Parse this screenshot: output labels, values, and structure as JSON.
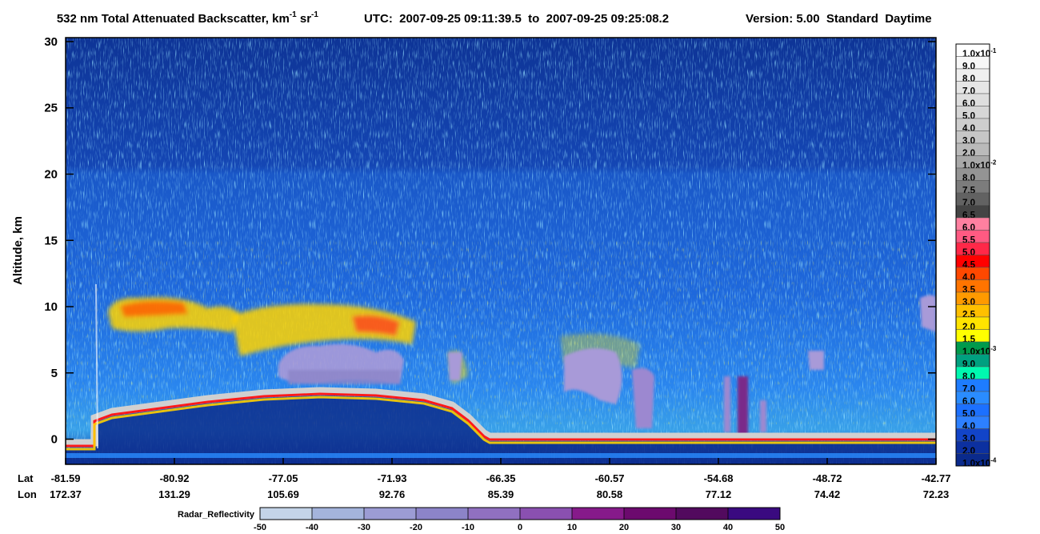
{
  "chart_data": {
    "type": "curtain",
    "title": [
      "532 nm Total Attenuated Backscatter, km",
      "-1",
      " sr",
      "-1"
    ],
    "time_range": "UTC:  2007-09-25 09:11:39.5  to  2007-09-25 09:25:08.2",
    "version": "Version: 5.00  Standard  Daytime",
    "ylabel": "Altitude, km",
    "ylim": [
      -1.9,
      30.3
    ],
    "yticks": [
      0,
      5,
      10,
      15,
      20,
      25,
      30
    ],
    "x_rows": [
      "Lat",
      "Lon"
    ],
    "lat": [
      -81.59,
      -80.92,
      -77.05,
      -71.93,
      -66.35,
      -60.57,
      -54.68,
      -48.72,
      -42.77
    ],
    "lon": [
      172.37,
      131.29,
      105.69,
      92.76,
      85.39,
      80.58,
      77.12,
      74.42,
      72.23
    ],
    "colorbar": [
      {
        "text": "1.0x10",
        "sup": "-1",
        "color": "#ffffff"
      },
      {
        "text": "9.0",
        "color": "#f7f7f7"
      },
      {
        "text": "8.0",
        "color": "#efefef"
      },
      {
        "text": "7.0",
        "color": "#e6e6e6"
      },
      {
        "text": "6.0",
        "color": "#dedede"
      },
      {
        "text": "5.0",
        "color": "#d6d6d6"
      },
      {
        "text": "4.0",
        "color": "#cecece"
      },
      {
        "text": "3.0",
        "color": "#c6c6c6"
      },
      {
        "text": "2.0",
        "color": "#bababa"
      },
      {
        "text": "1.0x10",
        "sup": "-2",
        "color": "#a8a8a8"
      },
      {
        "text": "8.0",
        "color": "#949494"
      },
      {
        "text": "7.5",
        "color": "#7c7c7c"
      },
      {
        "text": "7.0",
        "color": "#626262"
      },
      {
        "text": "6.5",
        "color": "#444444"
      },
      {
        "text": "6.0",
        "color": "#ff80a0"
      },
      {
        "text": "5.5",
        "color": "#ff5a82"
      },
      {
        "text": "5.0",
        "color": "#ff2848"
      },
      {
        "text": "4.5",
        "color": "#ff0000"
      },
      {
        "text": "4.0",
        "color": "#ff4800"
      },
      {
        "text": "3.5",
        "color": "#ff7400"
      },
      {
        "text": "3.0",
        "color": "#ff9a00"
      },
      {
        "text": "2.5",
        "color": "#ffc000"
      },
      {
        "text": "2.0",
        "color": "#ffe400"
      },
      {
        "text": "1.5",
        "color": "#ffff00"
      },
      {
        "text": "1.0x10",
        "sup": "-3",
        "color": "#009a4c"
      },
      {
        "text": "9.0",
        "color": "#00a080"
      },
      {
        "text": "8.0",
        "color": "#00f8b0"
      },
      {
        "text": "7.0",
        "color": "#1e7cff"
      },
      {
        "text": "6.0",
        "color": "#2a8cff"
      },
      {
        "text": "5.0",
        "color": "#1c70ff"
      },
      {
        "text": "4.0",
        "color": "#2d80ff"
      },
      {
        "text": "3.0",
        "color": "#1244c8"
      },
      {
        "text": "2.0",
        "color": "#0c30a0"
      },
      {
        "text": "1.0x10",
        "sup": "-4",
        "color": "#0a2a8c"
      }
    ],
    "radar": {
      "label": "Radar_Reflectivity",
      "lim": [
        -50,
        50
      ],
      "ticks": [
        -50,
        -40,
        -30,
        -20,
        -10,
        0,
        10,
        20,
        30,
        40,
        50
      ],
      "colors": [
        "#c4d4e8",
        "#a4b4dc",
        "#9c9cd4",
        "#8c84c8",
        "#9070c0",
        "#8a50b0",
        "#861a8a",
        "#6c0a6e",
        "#520a5e",
        "#3a0a80"
      ]
    }
  }
}
